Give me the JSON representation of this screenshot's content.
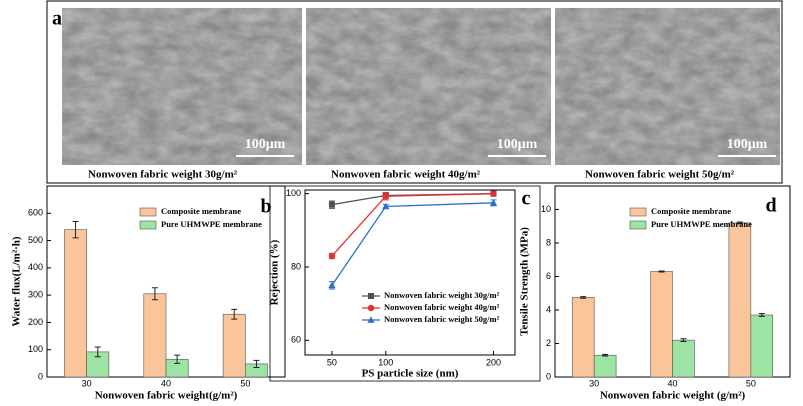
{
  "panel_a": {
    "label": "a",
    "images": [
      {
        "scale_bar": "100μm",
        "caption": "Nonwoven fabric weight 30g/m²"
      },
      {
        "scale_bar": "100μm",
        "caption": "Nonwoven fabric weight 40g/m²"
      },
      {
        "scale_bar": "100μm",
        "caption": "Nonwoven fabric weight 50g/m²"
      }
    ]
  },
  "chart_data": [
    {
      "type": "bar",
      "label": "b",
      "x_label": "Nonwoven fabric weight(g/m²)",
      "y_label": "Water flux(L/m²·h)",
      "categories": [
        "30",
        "40",
        "50"
      ],
      "series": [
        {
          "name": "Composite membrane",
          "color": "#fbc59c",
          "values": [
            540,
            305,
            230
          ],
          "errors": [
            30,
            22,
            18
          ]
        },
        {
          "name": "Pure UHMWPE membrane",
          "color": "#9de3a3",
          "values": [
            92,
            65,
            48
          ],
          "errors": [
            18,
            15,
            13
          ]
        }
      ],
      "ylim": [
        0,
        700
      ],
      "yticks": [
        0,
        100,
        200,
        300,
        400,
        500,
        600
      ],
      "legend": "upper right"
    },
    {
      "type": "line",
      "label": "c",
      "x_label": "PS particle size (nm)",
      "y_label": "Rejection (%)",
      "x": [
        50,
        100,
        200
      ],
      "xlim": [
        25,
        220
      ],
      "xticks": [
        50,
        100,
        200
      ],
      "ylim": [
        56,
        101
      ],
      "yticks": [
        60,
        80,
        100
      ],
      "series": [
        {
          "name": "Nonwoven fabric weight 30g/m²",
          "color": "#505050",
          "marker": "square",
          "values": [
            97,
            99.5,
            100
          ],
          "errors": [
            1,
            0.8,
            0.3
          ]
        },
        {
          "name": "Nonwoven fabric weight 40g/m²",
          "color": "#e03030",
          "marker": "circle",
          "values": [
            83,
            99.3,
            100
          ],
          "errors": [
            0.7,
            1,
            0.3
          ]
        },
        {
          "name": "Nonwoven fabric weight 50g/m²",
          "color": "#2a6fc9",
          "marker": "triangle",
          "values": [
            75,
            96.5,
            97.5
          ],
          "errors": [
            1,
            0.5,
            0.8
          ]
        }
      ],
      "legend": "center right"
    },
    {
      "type": "bar",
      "label": "d",
      "x_label": "Nonwoven fabric weight (g/m²)",
      "y_label": "Tensile Strength (MPa)",
      "categories": [
        "30",
        "40",
        "50"
      ],
      "series": [
        {
          "name": "Composite membrane",
          "color": "#fbc59c",
          "values": [
            4.75,
            6.3,
            9.2
          ],
          "errors": [
            0.05,
            0.03,
            0.05
          ]
        },
        {
          "name": "Pure UHMWPE membrane",
          "color": "#9de3a3",
          "values": [
            1.3,
            2.2,
            3.7
          ],
          "errors": [
            0.05,
            0.08,
            0.08
          ]
        }
      ],
      "ylim": [
        0,
        11.4
      ],
      "yticks": [
        0,
        2,
        4,
        6,
        8,
        10
      ],
      "legend": "upper right"
    }
  ]
}
